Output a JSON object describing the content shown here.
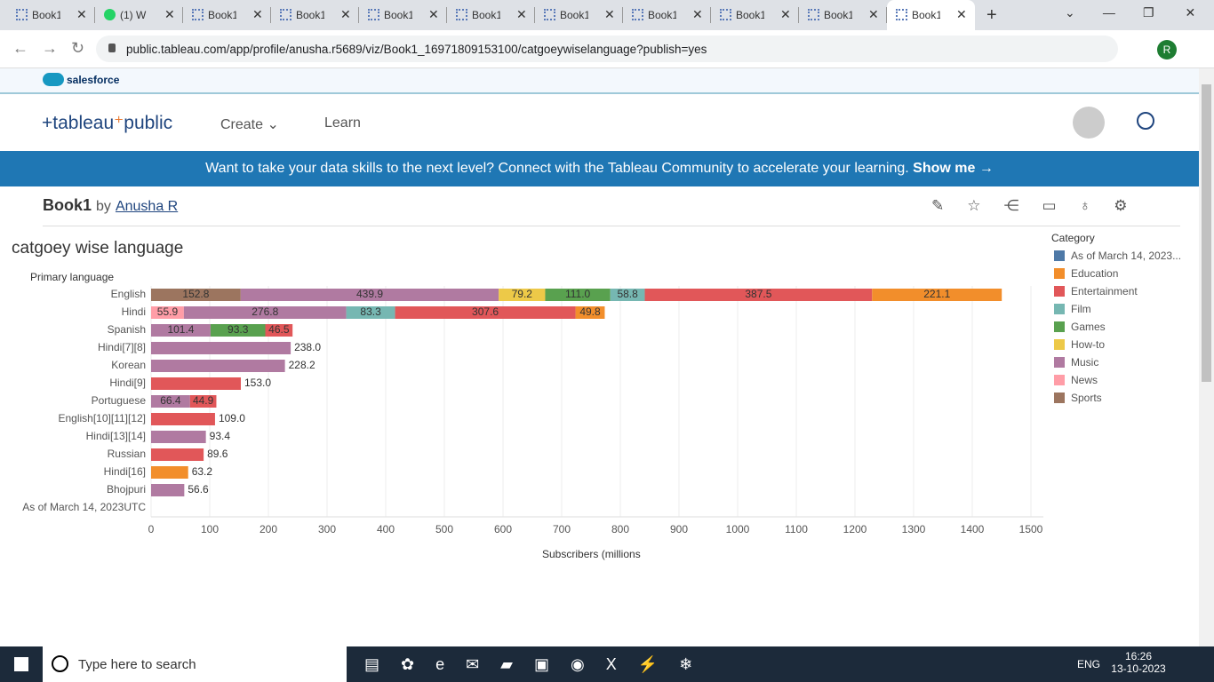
{
  "browser": {
    "tabs": [
      "Book1",
      "(1) W",
      "Book1",
      "Book1",
      "Book1",
      "Book1",
      "Book1",
      "Book1",
      "Book1",
      "Book1",
      "Book1"
    ],
    "url": "public.tableau.com/app/profile/anusha.r5689/viz/Book1_16971809153100/catgoeywiselanguage?publish=yes",
    "profile_initial": "R"
  },
  "header": {
    "salesforce": "salesforce",
    "logo_left": "tableau",
    "logo_right": "public",
    "nav": [
      "Create",
      "Learn"
    ]
  },
  "banner": {
    "text": "Want to take your data skills to the next level? Connect with the Tableau Community to accelerate your learning.",
    "link": "Show me →"
  },
  "workbook": {
    "name": "Book1",
    "by": "by",
    "author": "Anusha R"
  },
  "chart_data": {
    "type": "stacked_barh",
    "title": "catgoey wise language",
    "y_label": "Primary language",
    "x_label": "Subscribers (millions",
    "legend_title": "Category",
    "categories": [
      "English",
      "Hindi",
      "Spanish",
      "Hindi[7][8]",
      "Korean",
      "Hindi[9]",
      "Portuguese",
      "English[10][11][12]",
      "Hindi[13][14]",
      "Russian",
      "Hindi[16]",
      "Bhojpuri",
      "As of March 14, 2023UTC"
    ],
    "series": [
      {
        "name": "As of March 14, 2023...",
        "color": "#4e79a7",
        "values": [
          null,
          null,
          null,
          null,
          null,
          null,
          null,
          null,
          null,
          null,
          null,
          null,
          null
        ],
        "value_labels": [
          null,
          null,
          null,
          null,
          null,
          null,
          null,
          null,
          null,
          null,
          null,
          null,
          null
        ]
      },
      {
        "name": "Education",
        "color": "#f28e2b",
        "values": [
          221.1,
          49.8,
          null,
          null,
          null,
          null,
          null,
          null,
          null,
          null,
          63.2,
          null,
          null
        ],
        "value_labels": [
          "221.1",
          "49.8",
          null,
          null,
          null,
          null,
          null,
          null,
          null,
          null,
          "63.2",
          null,
          null
        ]
      },
      {
        "name": "Entertainment",
        "color": "#e15759",
        "values": [
          387.5,
          307.6,
          46.5,
          null,
          null,
          153.0,
          44.9,
          109.0,
          null,
          89.6,
          null,
          null,
          null
        ],
        "value_labels": [
          "387.5",
          "307.6",
          "46.5",
          null,
          null,
          "153.0",
          "44.9",
          "109.0",
          null,
          "89.6",
          null,
          null,
          null
        ]
      },
      {
        "name": "Film",
        "color": "#76b7b2",
        "values": [
          58.8,
          83.3,
          null,
          null,
          null,
          null,
          null,
          null,
          null,
          null,
          null,
          null,
          null
        ],
        "value_labels": [
          "58.8",
          "83.3",
          null,
          null,
          null,
          null,
          null,
          null,
          null,
          null,
          null,
          null,
          null
        ]
      },
      {
        "name": "Games",
        "color": "#59a14f",
        "values": [
          111.0,
          null,
          93.3,
          null,
          null,
          null,
          null,
          null,
          null,
          null,
          null,
          null,
          null
        ],
        "value_labels": [
          "111.0",
          null,
          "93.3",
          null,
          null,
          null,
          null,
          null,
          null,
          null,
          null,
          null,
          null
        ]
      },
      {
        "name": "How-to",
        "color": "#edc948",
        "values": [
          79.2,
          null,
          null,
          null,
          null,
          null,
          null,
          null,
          null,
          null,
          null,
          null,
          null
        ],
        "value_labels": [
          "79.2",
          null,
          null,
          null,
          null,
          null,
          null,
          null,
          null,
          null,
          null,
          null,
          null
        ]
      },
      {
        "name": "Music",
        "color": "#b07aa1",
        "values": [
          439.9,
          276.8,
          101.4,
          238.0,
          228.2,
          null,
          66.4,
          null,
          93.4,
          null,
          null,
          56.6,
          null
        ],
        "value_labels": [
          "439.9",
          "276.8",
          "101.4",
          "238.0",
          "228.2",
          null,
          "66.4",
          null,
          "93.4",
          null,
          null,
          "56.6",
          null
        ]
      },
      {
        "name": "News",
        "color": "#ff9da7",
        "values": [
          null,
          55.9,
          null,
          null,
          null,
          null,
          null,
          null,
          null,
          null,
          null,
          null,
          null
        ],
        "value_labels": [
          null,
          "55.9",
          null,
          null,
          null,
          null,
          null,
          null,
          null,
          null,
          null,
          null,
          null
        ]
      },
      {
        "name": "Sports",
        "color": "#9c755f",
        "values": [
          152.8,
          null,
          null,
          null,
          null,
          null,
          null,
          null,
          null,
          null,
          null,
          null,
          null
        ],
        "value_labels": [
          "152.8",
          null,
          null,
          null,
          null,
          null,
          null,
          null,
          null,
          null,
          null,
          null,
          null
        ]
      }
    ],
    "xlim": [
      0,
      1500
    ],
    "xticks": [
      0,
      100,
      200,
      300,
      400,
      500,
      600,
      700,
      800,
      900,
      1000,
      1100,
      1200,
      1300,
      1400,
      1500
    ],
    "grid": true
  },
  "taskbar": {
    "search": "Type here to search",
    "language": "ENG",
    "time": "16:26",
    "date": "13-10-2023"
  }
}
